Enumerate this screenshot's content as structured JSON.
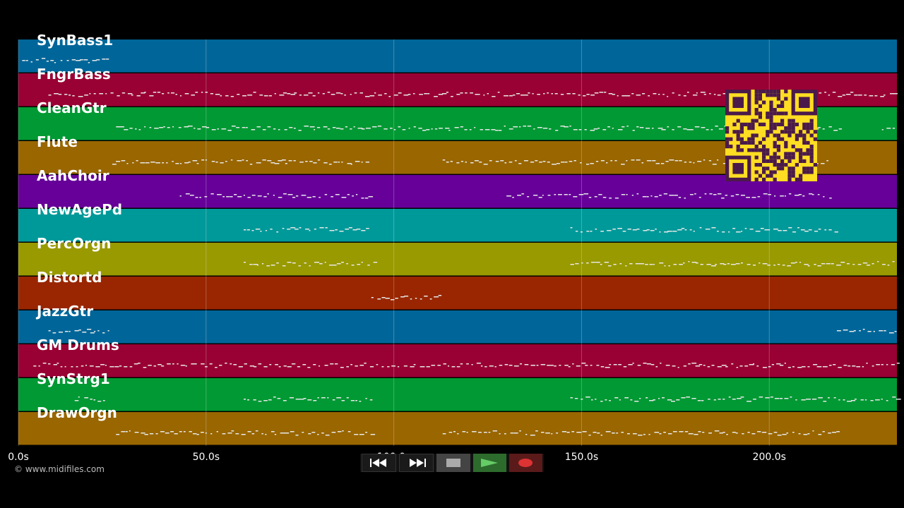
{
  "tracks": [
    {
      "name": "SynBass1",
      "color": "#006699",
      "notes": "bass-early"
    },
    {
      "name": "FngrBass",
      "color": "#990033",
      "notes": "dense-bass"
    },
    {
      "name": "CleanGtr",
      "color": "#009933",
      "notes": "guitar-steady"
    },
    {
      "name": "Flute",
      "color": "#996600",
      "notes": "melody-two"
    },
    {
      "name": "AahChoir",
      "color": "#660099",
      "notes": "choir-blips"
    },
    {
      "name": "NewAgePd",
      "color": "#009999",
      "notes": "pad-two"
    },
    {
      "name": "PercOrgn",
      "color": "#999900",
      "notes": "organ-two"
    },
    {
      "name": "Distortd",
      "color": "#992600",
      "notes": "solo"
    },
    {
      "name": "JazzGtr",
      "color": "#006699",
      "notes": "jazz"
    },
    {
      "name": "GM Drums",
      "color": "#990033",
      "notes": "drums"
    },
    {
      "name": "SynStrg1",
      "color": "#009933",
      "notes": "strings"
    },
    {
      "name": "DrawOrgn",
      "color": "#996600",
      "notes": "draworgan"
    }
  ],
  "axis": {
    "ticks": [
      "0.0s",
      "50.0s",
      "100.0s",
      "150.0s",
      "200.0s"
    ],
    "tick_values": [
      0,
      50,
      100,
      150,
      200
    ],
    "max": 234
  },
  "credit": "© www.midifiles.com",
  "controls": [
    {
      "name": "rewind-button",
      "icon": "rewind-icon"
    },
    {
      "name": "fast-forward-button",
      "icon": "fast-forward-icon"
    },
    {
      "name": "stop-button",
      "icon": "stop-icon"
    },
    {
      "name": "play-button",
      "icon": "play-icon"
    },
    {
      "name": "record-button",
      "icon": "record-icon"
    }
  ],
  "qr": {
    "color": "#ffdd22",
    "dark": "#4a1a4a",
    "icon": "qr-code-icon"
  }
}
